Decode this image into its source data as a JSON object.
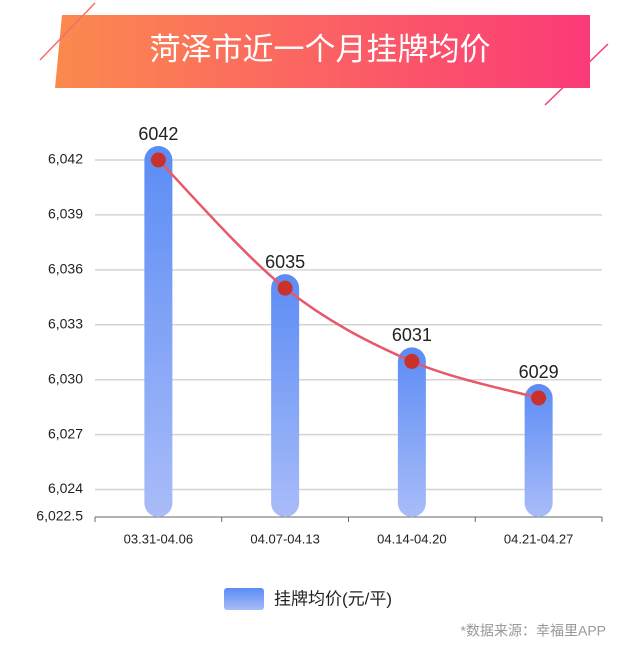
{
  "chart_data": {
    "type": "bar",
    "title": "菏泽市近一个月挂牌均价",
    "categories": [
      "03.31-04.06",
      "04.07-04.13",
      "04.14-04.20",
      "04.21-04.27"
    ],
    "series": [
      {
        "name": "挂牌均价(元/平)",
        "color": "#5b8cf5",
        "values": [
          6042,
          6035,
          6031,
          6029
        ]
      }
    ],
    "line": {
      "color": "#e8586a",
      "point_color": "#c8312c"
    },
    "ylim": [
      6022.5,
      6042
    ],
    "yticks": [
      {
        "value": 6022.5,
        "label": "6,022.5"
      },
      {
        "value": 6024,
        "label": "6,024"
      },
      {
        "value": 6027,
        "label": "6,027"
      },
      {
        "value": 6030,
        "label": "6,030"
      },
      {
        "value": 6033,
        "label": "6,033"
      },
      {
        "value": 6036,
        "label": "6,036"
      },
      {
        "value": 6039,
        "label": "6,039"
      },
      {
        "value": 6042,
        "label": "6,042"
      }
    ],
    "grid": true,
    "source": "*数据来源：幸福里APP"
  }
}
